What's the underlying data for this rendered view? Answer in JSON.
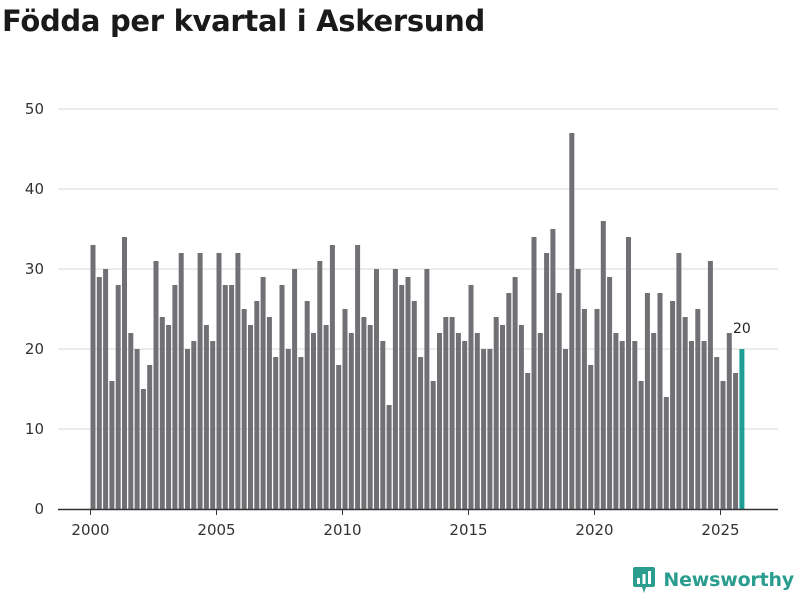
{
  "title": "Födda per kvartal i Askersund",
  "brand": {
    "name": "Newsworthy"
  },
  "colors": {
    "bar": "#717075",
    "highlight": "#1f9e95",
    "grid": "#d9d9d9",
    "axis": "#333333",
    "brand": "#2a9d8f"
  },
  "chart_data": {
    "type": "bar",
    "title": "Födda per kvartal i Askersund",
    "xlabel": "",
    "ylabel": "",
    "ylim": [
      0,
      50
    ],
    "yticks": [
      0,
      10,
      20,
      30,
      40,
      50
    ],
    "xticks": [
      2000,
      2005,
      2010,
      2015,
      2020,
      2025
    ],
    "start": "2000 Q1",
    "end": "2025 Q4",
    "grid": true,
    "highlight": {
      "period": "2025 Q4",
      "value": 20,
      "label": "20"
    },
    "values": [
      33,
      29,
      30,
      16,
      28,
      34,
      22,
      20,
      15,
      18,
      31,
      24,
      23,
      28,
      32,
      20,
      21,
      32,
      23,
      21,
      32,
      28,
      28,
      32,
      25,
      23,
      26,
      29,
      24,
      19,
      28,
      20,
      30,
      19,
      26,
      22,
      31,
      23,
      33,
      18,
      25,
      22,
      33,
      24,
      23,
      30,
      21,
      13,
      30,
      28,
      29,
      26,
      19,
      30,
      16,
      22,
      24,
      24,
      22,
      21,
      28,
      22,
      20,
      20,
      24,
      23,
      27,
      29,
      23,
      17,
      34,
      22,
      32,
      35,
      27,
      20,
      47,
      30,
      25,
      18,
      25,
      36,
      29,
      22,
      21,
      34,
      21,
      16,
      27,
      22,
      27,
      14,
      26,
      32,
      24,
      21,
      25,
      21,
      31,
      19,
      16,
      22,
      17,
      20
    ]
  }
}
